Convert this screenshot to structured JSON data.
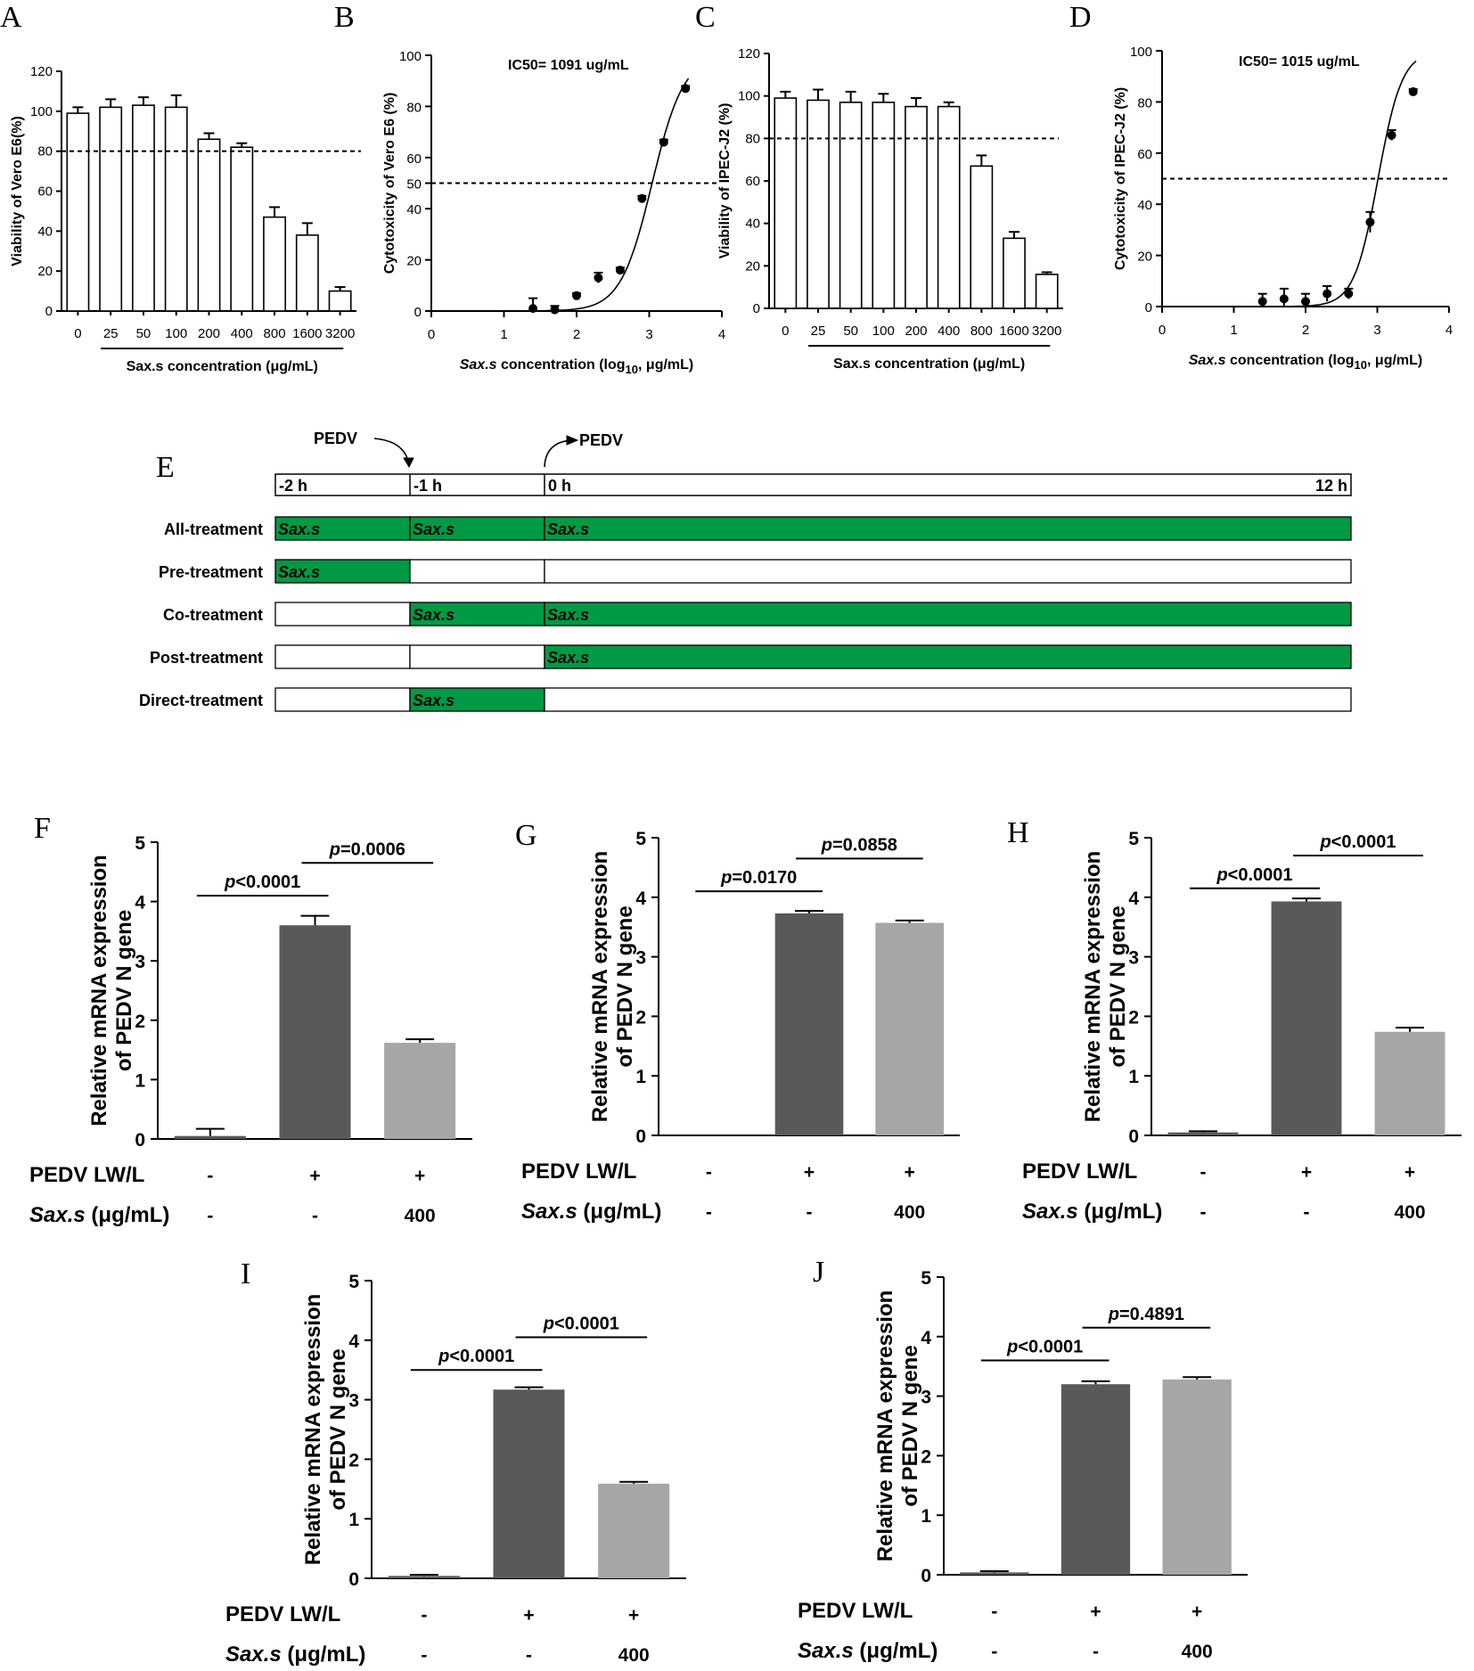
{
  "chart_data": [
    {
      "panel": "A",
      "type": "bar",
      "title": "",
      "ylabel": "Viability of Vero E6(%)",
      "xlabel": "Sax.s concentration (μg/mL)",
      "categories": [
        "0",
        "25",
        "50",
        "100",
        "200",
        "400",
        "800",
        "1600",
        "3200"
      ],
      "values": [
        99,
        102,
        103,
        102,
        86,
        82,
        47,
        38,
        10
      ],
      "errors": [
        3,
        4,
        4,
        6,
        3,
        2,
        5,
        6,
        2
      ],
      "ylim": [
        0,
        120
      ],
      "yticks": [
        "0",
        "20",
        "40",
        "60",
        "80",
        "100",
        "120"
      ],
      "threshold": 80
    },
    {
      "panel": "B",
      "type": "scatter",
      "ylabel": "Cytotoxicity of Vero E6 (%)",
      "xlabel_pre": "Sax.s",
      "xlabel_mid": " concentration (log",
      "xlabel_sub": "10",
      "xlabel_post": ", μg/mL)",
      "annotation": "IC50= 1091 ug/mL",
      "x": [
        1.4,
        1.7,
        2.0,
        2.3,
        2.6,
        2.9,
        3.2,
        3.5
      ],
      "y": [
        1,
        0.5,
        6,
        13,
        16,
        44,
        66,
        87
      ],
      "errors": [
        4,
        1.5,
        1,
        2,
        1,
        1,
        1,
        1
      ],
      "ic50_log": 3.04,
      "hill": 2.0,
      "top": 100,
      "xlim": [
        0,
        4
      ],
      "ylim": [
        0,
        100
      ],
      "xticks": [
        "0",
        "1",
        "2",
        "3",
        "4"
      ],
      "yticks": [
        "0",
        "20",
        "40",
        "50",
        "60",
        "80",
        "100"
      ],
      "threshold": 50
    },
    {
      "panel": "C",
      "type": "bar",
      "ylabel": "Viability of IPEC-J2 (%)",
      "xlabel": "Sax.s concentration (μg/mL)",
      "categories": [
        "0",
        "25",
        "50",
        "100",
        "200",
        "400",
        "800",
        "1600",
        "3200"
      ],
      "values": [
        99,
        98,
        97,
        97,
        95,
        95,
        67,
        33,
        16
      ],
      "errors": [
        3,
        5,
        5,
        4,
        4,
        2,
        5,
        3,
        1
      ],
      "ylim": [
        0,
        120
      ],
      "yticks": [
        "0",
        "20",
        "40",
        "60",
        "80",
        "100",
        "120"
      ],
      "threshold": 80
    },
    {
      "panel": "D",
      "type": "scatter",
      "ylabel": "Cytotoxicity of IPEC-J2 (%)",
      "xlabel_pre": "Sax.s",
      "xlabel_mid": " concentration (log",
      "xlabel_sub": "10",
      "xlabel_post": ", μg/mL)",
      "annotation": "IC50= 1015 ug/mL",
      "x": [
        1.4,
        1.7,
        2.0,
        2.3,
        2.6,
        2.9,
        3.2,
        3.5
      ],
      "y": [
        2,
        3,
        2,
        5,
        5,
        33,
        67,
        84
      ],
      "errors": [
        3,
        4,
        3,
        3,
        2,
        4,
        2,
        1
      ],
      "ic50_log": 3.01,
      "hill": 2.6,
      "top": 100,
      "xlim": [
        0,
        4
      ],
      "ylim": [
        0,
        100
      ],
      "xticks": [
        "0",
        "1",
        "2",
        "3",
        "4"
      ],
      "yticks": [
        "0",
        "20",
        "40",
        "60",
        "80",
        "100"
      ],
      "threshold": 50
    },
    {
      "panel": "F",
      "type": "bar",
      "ylabel": "Relative mRNA expression of PEDV N gene",
      "values": [
        0.05,
        3.6,
        1.62
      ],
      "errors": [
        0.12,
        0.16,
        0.06
      ],
      "ylim": [
        0,
        5
      ],
      "yticks": [
        "0",
        "1",
        "2",
        "3",
        "4",
        "5"
      ],
      "colors": [
        "#595959",
        "#595959",
        "#a6a6a6"
      ],
      "pvalues": [
        {
          "from": 0,
          "to": 1,
          "y": 4.1,
          "label": "<0.0001"
        },
        {
          "from": 1,
          "to": 2,
          "y": 4.65,
          "label": "=0.0006"
        }
      ],
      "row1": [
        "-",
        "+",
        "+"
      ],
      "row2": [
        "-",
        "-",
        "400"
      ]
    },
    {
      "panel": "G",
      "type": "bar",
      "ylabel": "Relative mRNA expression of PEDV N gene",
      "values": [
        0,
        3.73,
        3.57
      ],
      "errors": [
        0,
        0.04,
        0.04
      ],
      "ylim": [
        0,
        5
      ],
      "yticks": [
        "0",
        "1",
        "2",
        "3",
        "4",
        "5"
      ],
      "colors": [
        "#595959",
        "#595959",
        "#a6a6a6"
      ],
      "pvalues": [
        {
          "from": 0,
          "to": 1,
          "y": 4.1,
          "label": "=0.0170"
        },
        {
          "from": 1,
          "to": 2,
          "y": 4.65,
          "label": "=0.0858"
        }
      ],
      "row1": [
        "-",
        "+",
        "+"
      ],
      "row2": [
        "-",
        "-",
        "400"
      ]
    },
    {
      "panel": "H",
      "type": "bar",
      "ylabel": "Relative mRNA expression of PEDV N gene",
      "values": [
        0.05,
        3.93,
        1.74
      ],
      "errors": [
        0.02,
        0.05,
        0.07
      ],
      "ylim": [
        0,
        5
      ],
      "yticks": [
        "0",
        "1",
        "2",
        "3",
        "4",
        "5"
      ],
      "colors": [
        "#595959",
        "#595959",
        "#a6a6a6"
      ],
      "pvalues": [
        {
          "from": 0,
          "to": 1,
          "y": 4.15,
          "label": "<0.0001"
        },
        {
          "from": 1,
          "to": 2,
          "y": 4.7,
          "label": "<0.0001"
        }
      ],
      "row1": [
        "-",
        "+",
        "+"
      ],
      "row2": [
        "-",
        "-",
        "400"
      ]
    },
    {
      "panel": "I",
      "type": "bar",
      "ylabel": "Relative mRNA expression of PEDV N gene",
      "values": [
        0.04,
        3.17,
        1.59
      ],
      "errors": [
        0.02,
        0.04,
        0.03
      ],
      "ylim": [
        0,
        5
      ],
      "yticks": [
        "0",
        "1",
        "2",
        "3",
        "4",
        "5"
      ],
      "colors": [
        "#595959",
        "#595959",
        "#a6a6a6"
      ],
      "pvalues": [
        {
          "from": 0,
          "to": 1,
          "y": 3.5,
          "label": "<0.0001"
        },
        {
          "from": 1,
          "to": 2,
          "y": 4.05,
          "label": "<0.0001"
        }
      ],
      "row1": [
        "-",
        "+",
        "+"
      ],
      "row2": [
        "-",
        "-",
        "400"
      ]
    },
    {
      "panel": "J",
      "type": "bar",
      "ylabel": "Relative mRNA expression of PEDV N gene",
      "values": [
        0.04,
        3.2,
        3.28
      ],
      "errors": [
        0.02,
        0.05,
        0.04
      ],
      "ylim": [
        0,
        5
      ],
      "yticks": [
        "0",
        "1",
        "2",
        "3",
        "4",
        "5"
      ],
      "colors": [
        "#595959",
        "#595959",
        "#a6a6a6"
      ],
      "pvalues": [
        {
          "from": 0,
          "to": 1,
          "y": 3.6,
          "label": "<0.0001"
        },
        {
          "from": 1,
          "to": 2,
          "y": 4.15,
          "label": "=0.4891"
        }
      ],
      "row1": [
        "-",
        "+",
        "+"
      ],
      "row2": [
        "-",
        "-",
        "400"
      ]
    }
  ],
  "panels": {
    "A": {
      "letter": "A"
    },
    "B": {
      "letter": "B"
    },
    "C": {
      "letter": "C"
    },
    "D": {
      "letter": "D"
    },
    "E": {
      "letter": "E"
    },
    "F": {
      "letter": "F"
    },
    "G": {
      "letter": "G"
    },
    "H": {
      "letter": "H"
    },
    "I": {
      "letter": "I"
    },
    "J": {
      "letter": "J"
    }
  },
  "bar_panel_common": {
    "row1_label": "PEDV LW/L",
    "row2_label_italic": "Sax.s",
    "row2_label_rest": " (μg/mL)",
    "ylabel_line1": "Relative mRNA expression",
    "ylabel_line2": "of PEDV N gene",
    "p_prefix": "p"
  },
  "timeline": {
    "panel": "E",
    "arrow_in_label": "PEDV",
    "arrow_out_label": "PEDV",
    "time_labels": [
      "-2 h",
      "-1 h",
      "0 h",
      "12 h"
    ],
    "segment_text": "Sax.s",
    "fill_color": "#009a44",
    "rows": [
      {
        "label": "All-treatment",
        "segments": [
          true,
          true,
          true
        ]
      },
      {
        "label": "Pre-treatment",
        "segments": [
          true,
          false,
          false
        ]
      },
      {
        "label": "Co-treatment",
        "segments": [
          false,
          true,
          true
        ]
      },
      {
        "label": "Post-treatment",
        "segments": [
          false,
          false,
          true
        ]
      },
      {
        "label": "Direct-treatment",
        "segments": [
          false,
          true,
          false
        ]
      }
    ]
  }
}
